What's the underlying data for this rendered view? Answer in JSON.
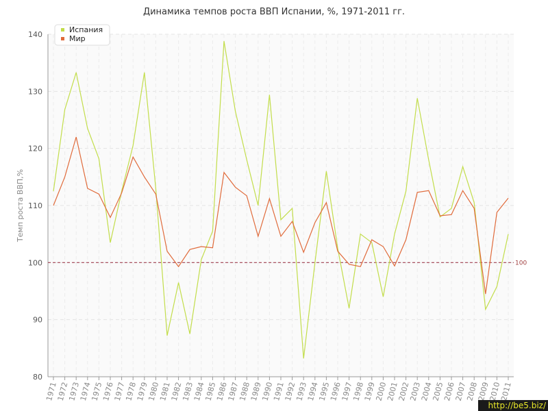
{
  "chart_data": {
    "type": "line",
    "title": "Динамика темпов роста ВВП Испании, %, 1971-2011 гг.",
    "xlabel": "",
    "ylabel": "Темп роста ВВП,%",
    "ylim": [
      80,
      140
    ],
    "yticks": [
      80,
      90,
      100,
      110,
      120,
      130,
      140
    ],
    "grid": true,
    "legend_position": "top-left",
    "categories": [
      "1971",
      "1972",
      "1973",
      "1974",
      "1975",
      "1976",
      "1977",
      "1978",
      "1979",
      "1980",
      "1981",
      "1982",
      "1983",
      "1984",
      "1985",
      "1986",
      "1987",
      "1988",
      "1989",
      "1990",
      "1991",
      "1992",
      "1993",
      "1994",
      "1995",
      "1996",
      "1997",
      "1998",
      "1999",
      "2000",
      "2001",
      "2002",
      "2003",
      "2004",
      "2005",
      "2006",
      "2007",
      "2008",
      "2009",
      "2010",
      "2011"
    ],
    "series": [
      {
        "name": "Испания",
        "color": "#c2dd4a",
        "values": [
          112.5,
          126.8,
          133.3,
          123.5,
          118.2,
          103.5,
          112.5,
          120.5,
          133.3,
          113.0,
          87.2,
          96.5,
          87.5,
          100.5,
          105.5,
          138.8,
          126.5,
          118.0,
          110.0,
          129.4,
          107.5,
          109.5,
          83.2,
          100.0,
          116.0,
          102.5,
          92.0,
          105.0,
          103.5,
          94.0,
          105.0,
          112.5,
          128.8,
          118.0,
          108.0,
          109.5,
          116.8,
          110.5,
          91.8,
          95.8,
          105.0
        ]
      },
      {
        "name": "Мир",
        "color": "#e06a3a",
        "values": [
          110.0,
          115.0,
          122.0,
          113.0,
          112.0,
          107.9,
          112.2,
          118.5,
          115.0,
          112.0,
          102.0,
          99.3,
          102.3,
          102.8,
          102.6,
          115.8,
          113.2,
          111.7,
          104.6,
          111.2,
          104.6,
          107.2,
          101.8,
          107.0,
          110.5,
          102.0,
          99.7,
          99.3,
          104.0,
          102.8,
          99.4,
          104.0,
          112.3,
          112.6,
          108.2,
          108.4,
          112.6,
          109.5,
          94.5,
          108.8,
          111.3
        ]
      }
    ],
    "reference_line": {
      "value": 100,
      "label": "100",
      "color": "#a04050"
    }
  },
  "watermark": "http://be5.biz/"
}
